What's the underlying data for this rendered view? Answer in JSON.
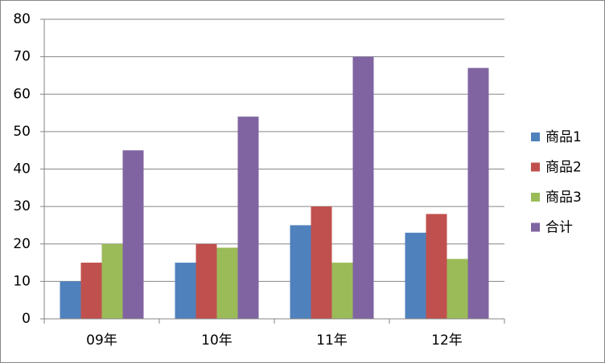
{
  "chart_data": {
    "type": "bar",
    "categories": [
      "09年",
      "10年",
      "11年",
      "12年"
    ],
    "series": [
      {
        "name": "商品1",
        "color": "#4f81bd",
        "values": [
          10,
          15,
          25,
          23
        ]
      },
      {
        "name": "商品2",
        "color": "#c0504d",
        "values": [
          15,
          20,
          30,
          28
        ]
      },
      {
        "name": "商品3",
        "color": "#9bbb59",
        "values": [
          20,
          19,
          15,
          16
        ]
      },
      {
        "name": "合计",
        "color": "#8064a2",
        "values": [
          45,
          54,
          70,
          67
        ]
      }
    ],
    "ylim": [
      0,
      80
    ],
    "yticks": [
      0,
      10,
      20,
      30,
      40,
      50,
      60,
      70,
      80
    ],
    "grid": true,
    "legend": "right"
  }
}
